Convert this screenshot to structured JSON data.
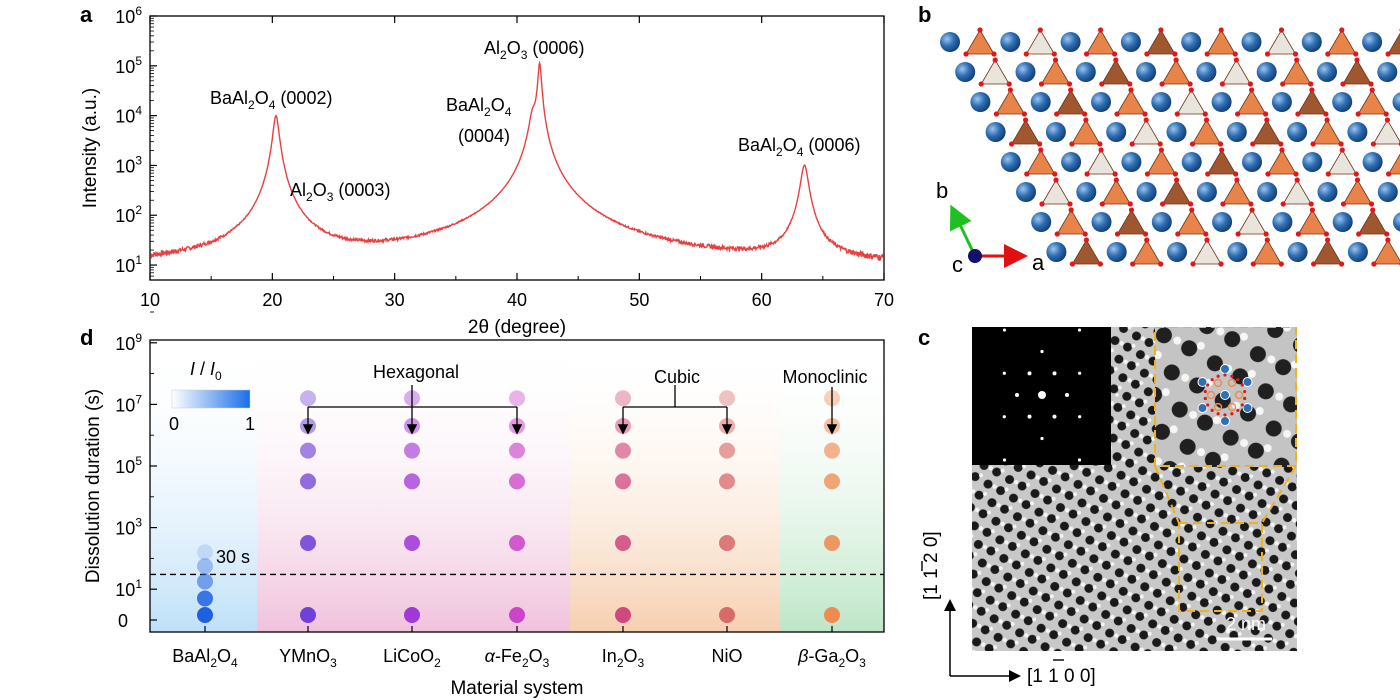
{
  "panel_labels": {
    "a": "a",
    "b": "b",
    "c": "c",
    "d": "d"
  },
  "colors": {
    "xrd": "#e84040",
    "dashed": "#000000",
    "hex": "#c040c0",
    "cubic": "#e07070",
    "mono": "#f08a50",
    "baal": "#2060e0",
    "gold": "#f0b020"
  },
  "chart_data": [
    {
      "id": "panel-a",
      "type": "line",
      "title": "",
      "xlabel": "2θ (degree)",
      "ylabel": "Intensity (a.u.)",
      "xlim": [
        10,
        70
      ],
      "ylim_log10": [
        0.7,
        6
      ],
      "xticks": [
        10,
        20,
        30,
        40,
        50,
        60,
        70
      ],
      "yticks": [
        {
          "base": "10",
          "exp": "1",
          "v": 1
        },
        {
          "base": "10",
          "exp": "2",
          "v": 2
        },
        {
          "base": "10",
          "exp": "3",
          "v": 3
        },
        {
          "base": "10",
          "exp": "4",
          "v": 4
        },
        {
          "base": "10",
          "exp": "5",
          "v": 5
        },
        {
          "base": "10",
          "exp": "6",
          "v": 6
        }
      ],
      "baseline_log": 0.95,
      "peaks": [
        {
          "x": 20.3,
          "log": 4.0,
          "w": 0.22
        },
        {
          "x": 20.6,
          "log": 1.6,
          "w": 0.2
        },
        {
          "x": 41.3,
          "log": 3.95,
          "w": 0.28
        },
        {
          "x": 41.85,
          "log": 5.05,
          "w": 0.13
        },
        {
          "x": 63.5,
          "log": 3.0,
          "w": 0.28
        }
      ],
      "annotations": [
        {
          "t": "BaAl2O4 (0002)"
        },
        {
          "t": "Al2O3 (0003)"
        },
        {
          "t": "Al2O3 (0006)"
        },
        {
          "t": "BaAl2O4"
        },
        {
          "t": "(0004)"
        },
        {
          "t": "BaAl2O4 (0006)"
        }
      ]
    },
    {
      "id": "panel-d",
      "type": "scatter",
      "xlabel": "Material system",
      "ylabel": "Dissolution duration (s)",
      "categories": [
        "BaAl2O4",
        "YMnO3",
        "LiCoO2",
        "α-Fe2O3",
        "In2O3",
        "NiO",
        "β-Ga2O3"
      ],
      "yticks": [
        {
          "label": "0",
          "v": 0
        },
        {
          "base": "10",
          "exp": "1",
          "v": 1
        },
        {
          "base": "10",
          "exp": "3",
          "v": 3
        },
        {
          "base": "10",
          "exp": "5",
          "v": 5
        },
        {
          "base": "10",
          "exp": "7",
          "v": 7
        },
        {
          "base": "10",
          "exp": "9",
          "v": 9
        }
      ],
      "threshold": {
        "value_log": 1.48,
        "label": "30 s"
      },
      "series": [
        {
          "name": "BaAl2O4",
          "values": [
            0,
            0.7,
            1.25,
            1.75,
            2.2
          ],
          "intensity": [
            1.0,
            0.85,
            0.55,
            0.35,
            0.15
          ]
        },
        {
          "name": "YMnO3",
          "values": [
            0,
            2.5,
            4.5,
            5.5,
            6.3,
            7.2
          ]
        },
        {
          "name": "LiCoO2",
          "values": [
            0,
            2.5,
            4.5,
            5.5,
            6.3,
            7.2
          ]
        },
        {
          "name": "α-Fe2O3",
          "values": [
            0,
            2.5,
            4.5,
            5.5,
            6.3,
            7.2
          ]
        },
        {
          "name": "In2O3",
          "values": [
            0,
            2.5,
            4.5,
            5.5,
            6.3,
            7.2
          ]
        },
        {
          "name": "NiO",
          "values": [
            0,
            2.5,
            4.5,
            5.5,
            6.3,
            7.2
          ]
        },
        {
          "name": "β-Ga2O3",
          "values": [
            0,
            2.5,
            4.5,
            5.5,
            6.3,
            7.2
          ]
        }
      ],
      "groups": [
        {
          "label": "Hexagonal"
        },
        {
          "label": "Cubic"
        },
        {
          "label": "Monoclinic"
        }
      ],
      "colorbar": {
        "title_i": "I",
        "title_sep": " / ",
        "title_i0": "I",
        "title_sub": "0",
        "min": "0",
        "max": "1"
      }
    }
  ],
  "structure_b": {
    "axes": {
      "a": "a",
      "b": "b",
      "c": "c"
    }
  },
  "tem_c": {
    "scale_bar": "2 nm",
    "dir_vertical": "[1 1 2 0]",
    "dir_horizontal": "[1 1 0 0]",
    "bar_vertical": "2",
    "bar_horizontal": "1"
  }
}
